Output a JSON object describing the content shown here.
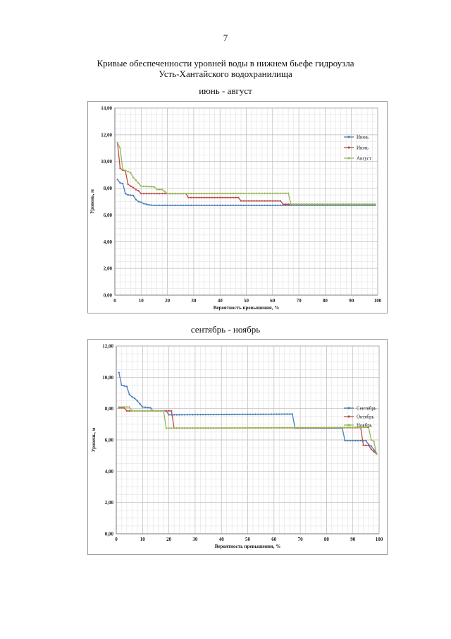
{
  "page_number": "7",
  "title_line1": "Кривые обеспеченности уровней воды в нижнем бьефе гидроузла",
  "title_line2": "Усть-Хантайского водохранилища",
  "chart_data": [
    {
      "type": "line",
      "subtitle": "июнь - август",
      "xlabel": "Вероятность превышения, %",
      "ylabel": "Уровень, м",
      "xlim": [
        0,
        100
      ],
      "ylim": [
        0,
        14
      ],
      "xticks": [
        "0",
        "10",
        "20",
        "30",
        "40",
        "50",
        "60",
        "70",
        "80",
        "90",
        "100"
      ],
      "yticks": [
        "0,00",
        "2,00",
        "4,00",
        "6,00",
        "8,00",
        "10,00",
        "12,00",
        "14,00"
      ],
      "grid": true,
      "legend_position": "right",
      "series": [
        {
          "name": "Июнь",
          "color": "#4a7ebb",
          "steps": [
            [
              1,
              8.65
            ],
            [
              2,
              8.4
            ],
            [
              3,
              8.35
            ],
            [
              4,
              7.6
            ],
            [
              5,
              7.5
            ],
            [
              7,
              7.45
            ],
            [
              8,
              7.15
            ],
            [
              9,
              7.0
            ],
            [
              10,
              6.95
            ],
            [
              11,
              6.85
            ],
            [
              12,
              6.8
            ],
            [
              13,
              6.75
            ],
            [
              15,
              6.72
            ],
            [
              99,
              6.72
            ]
          ]
        },
        {
          "name": "Июль",
          "color": "#be4b48",
          "steps": [
            [
              1,
              11.4
            ],
            [
              2,
              9.5
            ],
            [
              3,
              9.35
            ],
            [
              4,
              9.3
            ],
            [
              5,
              8.3
            ],
            [
              6,
              8.15
            ],
            [
              7,
              8.05
            ],
            [
              8,
              7.9
            ],
            [
              9,
              7.8
            ],
            [
              10,
              7.6
            ],
            [
              28,
              7.6
            ],
            [
              28,
              7.3
            ],
            [
              48,
              7.3
            ],
            [
              48,
              7.05
            ],
            [
              64,
              7.05
            ],
            [
              64,
              6.8
            ],
            [
              99,
              6.8
            ]
          ]
        },
        {
          "name": "Август",
          "color": "#98b954",
          "steps": [
            [
              1,
              11.4
            ],
            [
              2,
              11.0
            ],
            [
              3,
              9.4
            ],
            [
              5,
              9.25
            ],
            [
              6,
              9.15
            ],
            [
              7,
              8.8
            ],
            [
              8,
              8.6
            ],
            [
              10,
              8.15
            ],
            [
              15,
              8.1
            ],
            [
              16,
              7.9
            ],
            [
              18,
              7.9
            ],
            [
              19,
              7.75
            ],
            [
              20,
              7.6
            ],
            [
              66,
              7.62
            ],
            [
              67,
              6.8
            ],
            [
              99,
              6.8
            ]
          ]
        }
      ]
    },
    {
      "type": "line",
      "subtitle": "сентябрь - ноябрь",
      "xlabel": "Вероятность превышения, %",
      "ylabel": "Уровень, м",
      "xlim": [
        0,
        100
      ],
      "ylim": [
        0,
        12
      ],
      "xticks": [
        "0",
        "10",
        "20",
        "30",
        "40",
        "50",
        "60",
        "70",
        "80",
        "90",
        "100"
      ],
      "yticks": [
        "0,00",
        "2,00",
        "4,00",
        "6,00",
        "8,00",
        "10,00",
        "12,00"
      ],
      "grid": true,
      "legend_position": "right",
      "series": [
        {
          "name": "Сентябрь",
          "color": "#4a7ebb",
          "steps": [
            [
              1,
              10.3
            ],
            [
              2,
              9.5
            ],
            [
              4,
              9.4
            ],
            [
              5,
              8.9
            ],
            [
              6,
              8.75
            ],
            [
              7,
              8.65
            ],
            [
              8,
              8.5
            ],
            [
              10,
              8.1
            ],
            [
              13,
              8.05
            ],
            [
              14,
              7.85
            ],
            [
              19,
              7.85
            ],
            [
              20,
              7.6
            ],
            [
              67,
              7.65
            ],
            [
              68,
              6.75
            ],
            [
              86,
              6.75
            ],
            [
              86.5,
              6.3
            ],
            [
              87,
              5.95
            ],
            [
              95,
              5.95
            ],
            [
              96,
              5.7
            ],
            [
              97,
              5.6
            ],
            [
              99,
              5.15
            ]
          ]
        },
        {
          "name": "Октябрь",
          "color": "#be4b48",
          "steps": [
            [
              1,
              8.05
            ],
            [
              3,
              8.05
            ],
            [
              4,
              7.85
            ],
            [
              21,
              7.85
            ],
            [
              22,
              6.75
            ],
            [
              93,
              6.78
            ],
            [
              94,
              5.65
            ],
            [
              96,
              5.65
            ],
            [
              97,
              5.4
            ],
            [
              99,
              5.1
            ]
          ]
        },
        {
          "name": "Ноябрь",
          "color": "#98b954",
          "steps": [
            [
              1,
              8.1
            ],
            [
              5,
              8.1
            ],
            [
              6,
              7.85
            ],
            [
              18,
              7.85
            ],
            [
              19,
              6.75
            ],
            [
              96,
              6.8
            ],
            [
              97,
              6.0
            ],
            [
              98,
              5.9
            ],
            [
              99,
              5.1
            ]
          ]
        }
      ]
    }
  ]
}
